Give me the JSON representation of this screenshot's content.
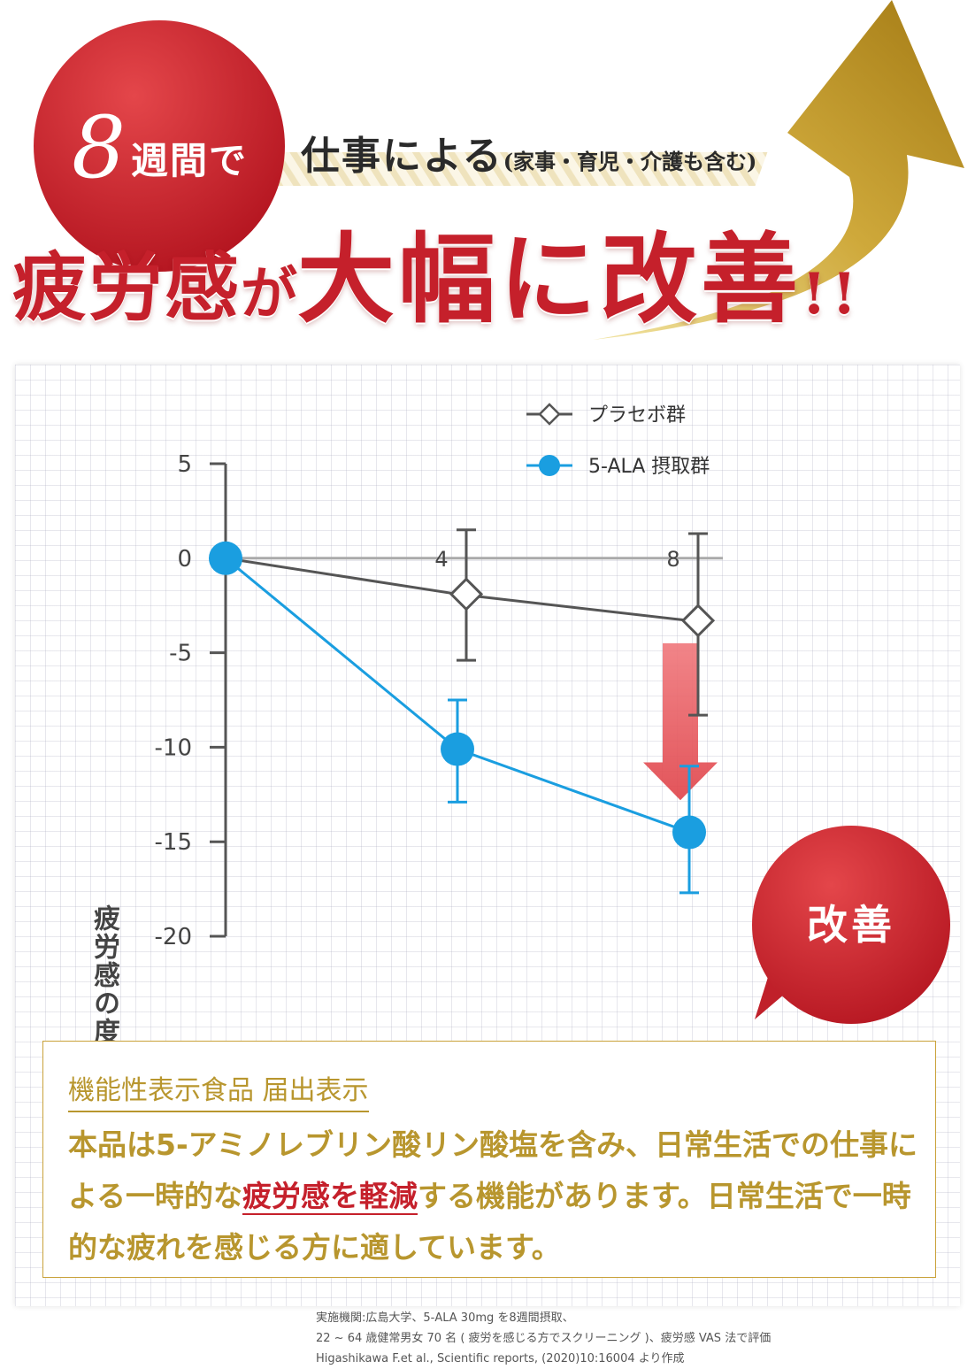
{
  "header": {
    "badge_number": "8",
    "badge_text": "週間で",
    "subtitle_main": "仕事による",
    "subtitle_paren": "(家事・育児・介護も含む)",
    "headline_part1": "疲労感",
    "headline_part2": "が",
    "headline_part3": "大幅に改善",
    "headline_part4": "!!"
  },
  "callout": {
    "label": "改善"
  },
  "chart_data": {
    "type": "line",
    "ylabel": "疲労感の度合(変化量)",
    "x": [
      0,
      4,
      8
    ],
    "x_tick_labels": [
      "4",
      "8"
    ],
    "ylim": [
      -20,
      5
    ],
    "y_ticks": [
      5,
      0,
      -5,
      -10,
      -15,
      -20
    ],
    "y_tick_labels": [
      "5",
      "0",
      "-5",
      "-10",
      "-15",
      "-20"
    ],
    "legend_placement": "top-right",
    "series": [
      {
        "name": "プラセボ群",
        "marker": "diamond",
        "color": "#555555",
        "values": [
          0,
          -1.9,
          -3.3
        ],
        "error_low": [
          null,
          -5.4,
          -8.3
        ],
        "error_high": [
          null,
          1.5,
          1.3
        ]
      },
      {
        "name": "5-ALA 摂取群",
        "marker": "circle",
        "color": "#1a9ee0",
        "values": [
          0,
          -10.1,
          -14.5
        ],
        "error_low": [
          null,
          -12.9,
          -17.7
        ],
        "error_high": [
          null,
          -7.5,
          -11.0
        ]
      }
    ]
  },
  "source": {
    "line1": "実施機関:広島大学、5-ALA 30mg を8週間摂取、",
    "line2": "22 ~ 64 歳健常男女 70 名 ( 疲労を感じる方でスクリーニング )、疲労感 VAS 法で評価",
    "line3": "Higashikawa F.et al., Scientific reports, (2020)10:16004 より作成"
  },
  "claim": {
    "title": "機能性表示食品 届出表示",
    "body_before": "本品は5-アミノレブリン酸リン酸塩を含み、日常生活での仕事による一時的な",
    "body_highlight": "疲労感を軽減",
    "body_after": "する機能があります。日常生活で一時的な疲れを感じる方に適しています。"
  },
  "colors": {
    "red": "#c5202b",
    "gold": "#b8962e",
    "blue": "#1a9ee0",
    "gray": "#555555"
  }
}
